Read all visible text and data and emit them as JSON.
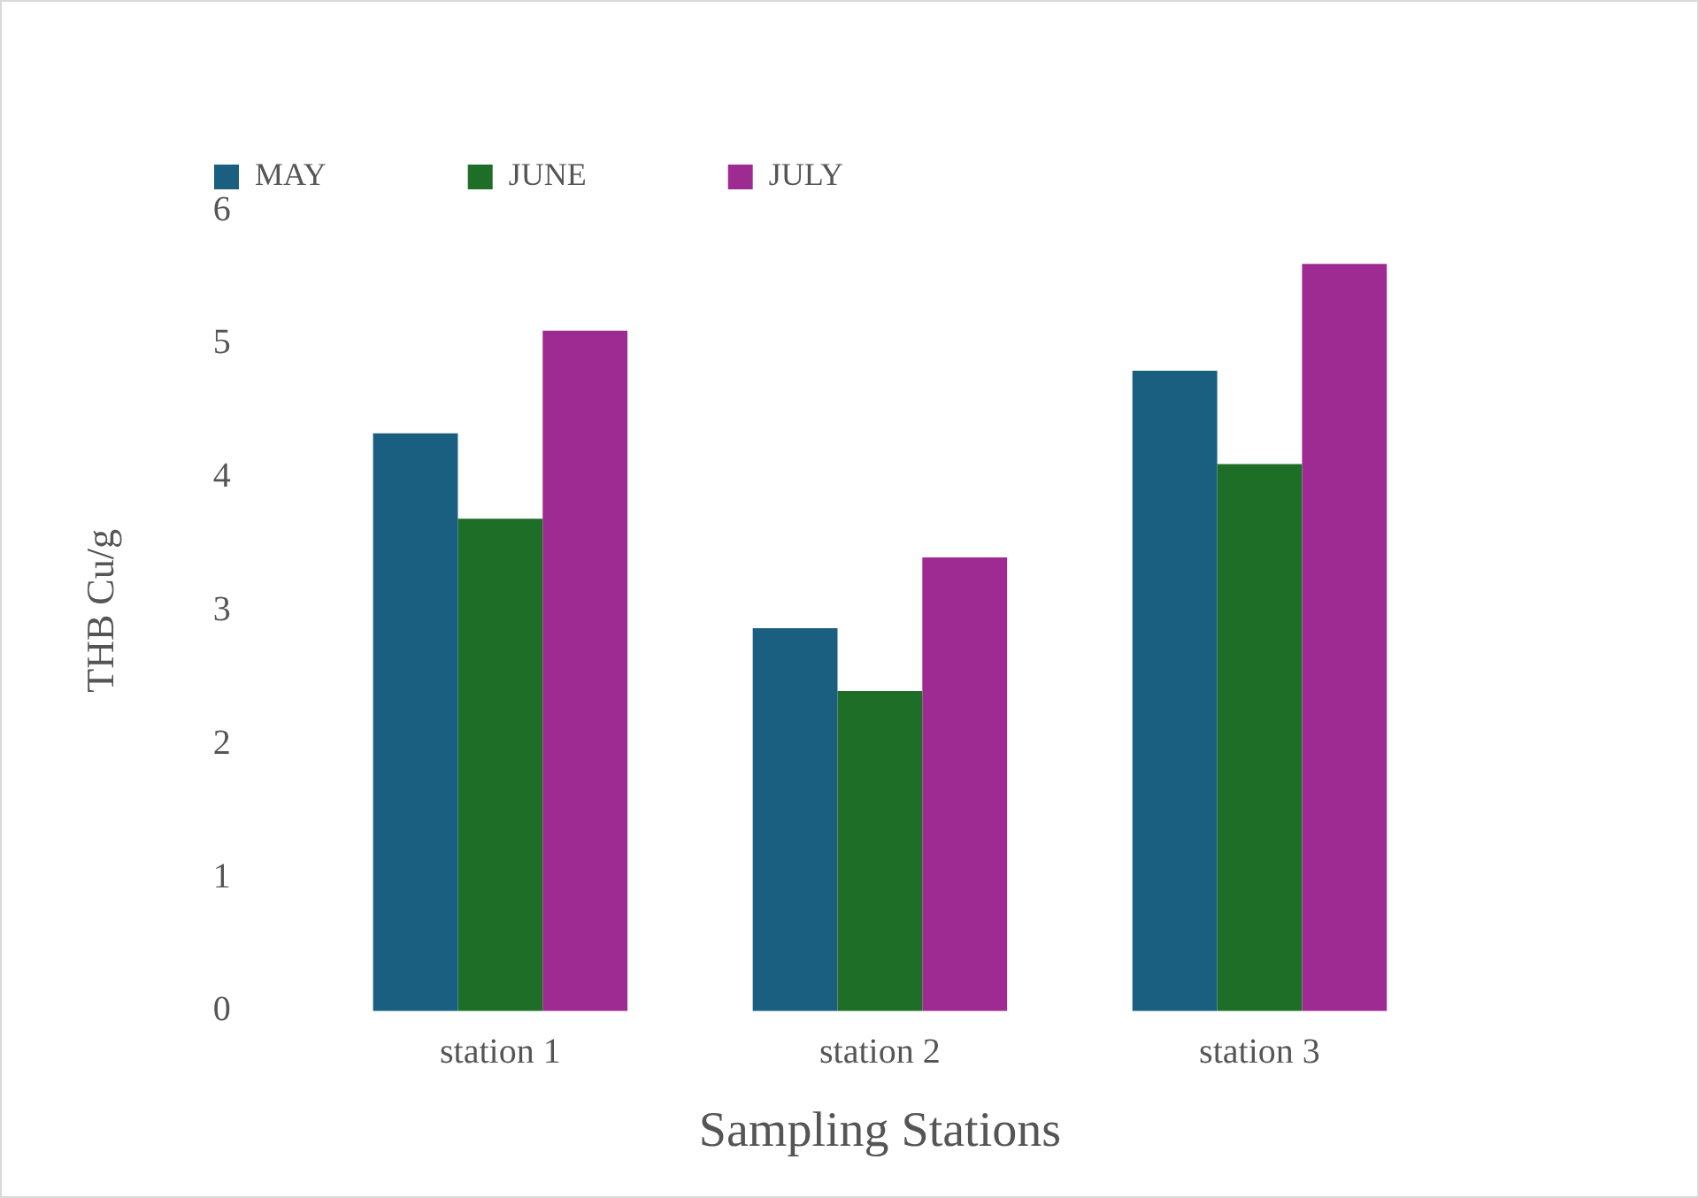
{
  "chart_data": {
    "type": "bar",
    "xlabel": "Sampling Stations",
    "ylabel": "THB Cu/g",
    "categories": [
      "station 1",
      "station 2",
      "station 3"
    ],
    "series": [
      {
        "name": "MAY",
        "color": "#1a5e80",
        "values": [
          4.33,
          2.87,
          4.8
        ]
      },
      {
        "name": "JUNE",
        "color": "#1e6e28",
        "values": [
          3.69,
          2.4,
          4.1
        ]
      },
      {
        "name": "JULY",
        "color": "#9e2b91",
        "values": [
          5.1,
          3.4,
          5.6
        ]
      }
    ],
    "ylim": [
      0,
      6
    ],
    "yticks": [
      0,
      1,
      2,
      3,
      4,
      5,
      6
    ],
    "grid": false,
    "legend": "top"
  }
}
